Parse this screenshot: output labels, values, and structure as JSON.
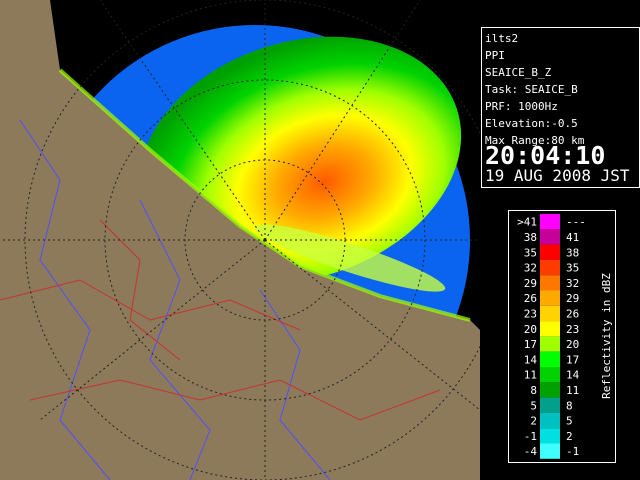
{
  "info_panel": {
    "site": "ilts2",
    "mode": "PPI",
    "product": "SEAICE_B_Z",
    "task": "Task: SEAICE_B",
    "prf": "PRF: 1000Hz",
    "elevation": "Elevation:-0.5",
    "max_range": "Max Range:80 km",
    "time": "20:04:10",
    "date": "19 AUG 2008 JST"
  },
  "legend": {
    "title": "Reflectivity in dBZ",
    "rows": [
      {
        "low": ">41",
        "high": "---",
        "color": "#ff00ff"
      },
      {
        "low": "38",
        "high": "41",
        "color": "#c8009a"
      },
      {
        "low": "35",
        "high": "38",
        "color": "#ff0000"
      },
      {
        "low": "32",
        "high": "35",
        "color": "#ff3c00"
      },
      {
        "low": "29",
        "high": "32",
        "color": "#ff7800"
      },
      {
        "low": "26",
        "high": "29",
        "color": "#ffaa00"
      },
      {
        "low": "23",
        "high": "26",
        "color": "#ffd200"
      },
      {
        "low": "20",
        "high": "23",
        "color": "#ffff00"
      },
      {
        "low": "17",
        "high": "20",
        "color": "#a0ff00"
      },
      {
        "low": "14",
        "high": "17",
        "color": "#00ff00"
      },
      {
        "low": "11",
        "high": "14",
        "color": "#00d200"
      },
      {
        "low": "8",
        "high": "11",
        "color": "#00a000"
      },
      {
        "low": "5",
        "high": "8",
        "color": "#00a08c"
      },
      {
        "low": "2",
        "high": "5",
        "color": "#00c0c0"
      },
      {
        "low": "-1",
        "high": "2",
        "color": "#00e0e0"
      },
      {
        "low": "-4",
        "high": "-1",
        "color": "#40ffff"
      }
    ]
  }
}
